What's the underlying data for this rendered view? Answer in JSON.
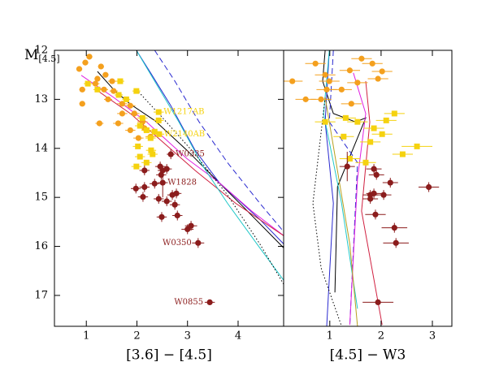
{
  "chart_data": [
    {
      "type": "scatter",
      "xlabel": "[3.6] − [4.5]",
      "ylabel": "M",
      "ylabel_sub": "[4.5]",
      "xlim": [
        0.37,
        4.9
      ],
      "xticks": [
        1,
        2,
        3,
        4
      ],
      "ylim": [
        17.63,
        12
      ],
      "yticks": [
        12,
        13,
        14,
        15,
        16,
        17
      ],
      "series": [
        {
          "color": "#f4a01e",
          "marker": "circle",
          "x": [
            1.06,
            0.86,
            0.98,
            1.29,
            1.38,
            1.22,
            0.92,
            0.92,
            1.18,
            1.51,
            1.35,
            1.54,
            1.43,
            1.71,
            1.63,
            1.87,
            1.71,
            1.95,
            2.11,
            1.87,
            2.03,
            2.15,
            2.27,
            1.26
          ],
          "values": [
            12.13,
            12.38,
            12.25,
            12.33,
            12.5,
            12.58,
            12.8,
            13.09,
            12.68,
            12.63,
            12.8,
            12.83,
            13.0,
            13.09,
            13.49,
            13.13,
            13.29,
            13.29,
            13.46,
            13.63,
            13.79,
            13.59,
            13.76,
            13.49
          ],
          "xerr": [
            0.06,
            0.06,
            0.06,
            0.06,
            0.06,
            0.06,
            0.06,
            0.06,
            0.08,
            0.08,
            0.08,
            0.08,
            0.08,
            0.1,
            0.1,
            0.1,
            0.1,
            0.1,
            0.1,
            0.1,
            0.1,
            0.1,
            0.1,
            0.08
          ],
          "yerr": [
            0.05,
            0.05,
            0.05,
            0.05,
            0.05,
            0.05,
            0.05,
            0.05,
            0.05,
            0.05,
            0.05,
            0.05,
            0.05,
            0.05,
            0.05,
            0.05,
            0.05,
            0.05,
            0.05,
            0.05,
            0.05,
            0.05,
            0.05,
            0.05
          ]
        },
        {
          "color": "#f5d20f",
          "marker": "square",
          "x": [
            1.03,
            1.22,
            1.64,
            1.67,
            1.79,
            1.99,
            2.06,
            2.19,
            2.11,
            2.27,
            2.35,
            2.43,
            2.06,
            2.19,
            1.99,
            2.31,
            2.43,
            2.44,
            2.28,
            2.02
          ],
          "values": [
            12.68,
            12.8,
            12.91,
            12.63,
            13.0,
            12.83,
            13.54,
            13.63,
            13.38,
            13.79,
            13.66,
            13.43,
            14.17,
            14.29,
            14.37,
            14.12,
            13.26,
            13.71,
            14.04,
            13.96
          ],
          "xerr": [
            0.08,
            0.08,
            0.08,
            0.08,
            0.08,
            0.08,
            0.1,
            0.1,
            0.1,
            0.1,
            0.1,
            0.1,
            0.1,
            0.1,
            0.1,
            0.1,
            0.1,
            0.1,
            0.1,
            0.1
          ],
          "yerr": [
            0.05,
            0.05,
            0.05,
            0.05,
            0.05,
            0.05,
            0.05,
            0.05,
            0.05,
            0.05,
            0.05,
            0.05,
            0.05,
            0.05,
            0.05,
            0.05,
            0.05,
            0.05,
            0.05,
            0.05
          ],
          "point_labels": [
            null,
            null,
            null,
            null,
            null,
            null,
            null,
            null,
            null,
            null,
            null,
            null,
            null,
            null,
            null,
            null,
            "W1217AB",
            "W2140AB",
            null,
            null
          ]
        },
        {
          "color": "#8b1c1c",
          "marker": "circle",
          "x": [
            2.67,
            2.51,
            2.46,
            2.48,
            2.59,
            2.51,
            2.15,
            1.98,
            2.15,
            2.12,
            2.43,
            2.59,
            2.7,
            2.75,
            2.8,
            2.49,
            3.0,
            3.07,
            3.21,
            3.44,
            2.35,
            2.78
          ],
          "values": [
            14.12,
            14.45,
            14.37,
            14.54,
            14.42,
            14.7,
            14.45,
            14.82,
            14.79,
            14.99,
            15.03,
            15.08,
            14.95,
            15.15,
            15.37,
            15.4,
            15.65,
            15.58,
            15.93,
            17.14,
            14.72,
            14.92
          ],
          "xerr": [
            0.08,
            0.1,
            0.1,
            0.1,
            0.1,
            0.1,
            0.1,
            0.1,
            0.1,
            0.1,
            0.1,
            0.1,
            0.1,
            0.1,
            0.1,
            0.1,
            0.12,
            0.12,
            0.12,
            0.1,
            0.1,
            0.1
          ],
          "yerr": [
            0.1,
            0.1,
            0.1,
            0.1,
            0.1,
            0.3,
            0.1,
            0.1,
            0.1,
            0.1,
            0.1,
            0.1,
            0.1,
            0.1,
            0.1,
            0.1,
            0.1,
            0.1,
            0.1,
            0.05,
            0.1,
            0.1
          ],
          "point_labels": [
            "W0335",
            null,
            null,
            null,
            null,
            "W1828",
            null,
            null,
            null,
            null,
            null,
            null,
            null,
            null,
            null,
            null,
            null,
            null,
            "W0350",
            "W0855",
            null,
            null
          ]
        }
      ],
      "lines": [
        {
          "color": "#000000",
          "dash": "solid",
          "x": [
            1.22,
            1.54,
            1.87,
            2.35,
            2.99,
            3.47,
            4.11,
            4.9
          ],
          "values": [
            12.43,
            12.8,
            13.1,
            13.43,
            14.04,
            14.54,
            15.2,
            16.03
          ]
        },
        {
          "color": "#2a2ad0",
          "dash": "solid",
          "x": [
            1.99,
            2.27,
            2.67,
            3.15,
            3.63,
            4.43,
            4.9
          ],
          "values": [
            12.0,
            12.46,
            13.13,
            14.04,
            14.7,
            15.45,
            15.95
          ]
        },
        {
          "color": "#2a2ad0",
          "dash": "dashed",
          "x": [
            2.35,
            2.75,
            3.23,
            3.79,
            4.43,
            4.9
          ],
          "values": [
            12.0,
            12.63,
            13.46,
            14.29,
            15.12,
            15.7
          ]
        },
        {
          "color": "#e020e0",
          "dash": "solid",
          "x": [
            0.9,
            1.54,
            2.19,
            2.99,
            3.63,
            4.27,
            4.9
          ],
          "values": [
            12.51,
            12.96,
            13.46,
            14.21,
            14.7,
            15.28,
            15.78
          ]
        },
        {
          "color": "#d02040",
          "dash": "solid",
          "x": [
            1.19,
            1.87,
            2.51,
            3.15,
            3.95,
            4.9
          ],
          "values": [
            12.8,
            13.29,
            13.87,
            14.45,
            15.12,
            15.78
          ]
        },
        {
          "color": "#20c8c8",
          "dash": "solid",
          "x": [
            1.99,
            2.35,
            2.83,
            3.31,
            3.79,
            4.43,
            4.9
          ],
          "values": [
            12.0,
            12.63,
            13.46,
            14.37,
            15.12,
            16.03,
            16.69
          ]
        },
        {
          "color": "#000000",
          "dash": "dotted",
          "x": [
            1.99,
            2.51,
            3.15,
            3.79,
            4.43,
            4.9
          ],
          "values": [
            12.8,
            13.38,
            14.12,
            14.95,
            15.95,
            16.77
          ]
        }
      ]
    },
    {
      "type": "scatter",
      "xlabel": "[4.5] − W3",
      "xlim": [
        0.1,
        3.38
      ],
      "xticks": [
        1,
        2,
        3
      ],
      "ylim": [
        17.63,
        12
      ],
      "series": [
        {
          "color": "#f4a01e",
          "marker": "circle",
          "x": [
            0.27,
            0.53,
            0.72,
            0.91,
            0.99,
            1.39,
            1.62,
            1.83,
            1.94,
            0.94,
            0.83,
            1.23,
            1.42,
            2.02,
            1.54
          ],
          "values": [
            12.63,
            13.0,
            12.27,
            12.5,
            12.63,
            12.41,
            12.17,
            12.27,
            12.58,
            12.8,
            13.0,
            12.8,
            13.09,
            12.43,
            12.66
          ],
          "xerr": [
            0.2,
            0.2,
            0.2,
            0.2,
            0.2,
            0.2,
            0.2,
            0.2,
            0.2,
            0.2,
            0.2,
            0.2,
            0.2,
            0.2,
            0.2
          ],
          "yerr": [
            0.05,
            0.05,
            0.05,
            0.05,
            0.05,
            0.05,
            0.05,
            0.05,
            0.05,
            0.05,
            0.05,
            0.05,
            0.05,
            0.05,
            0.05
          ]
        },
        {
          "color": "#f5d20f",
          "marker": "square",
          "x": [
            0.91,
            1.31,
            1.54,
            1.86,
            2.1,
            2.26,
            2.02,
            2.42,
            2.7,
            1.27,
            1.79,
            1.39,
            1.7
          ],
          "values": [
            13.46,
            13.38,
            13.46,
            13.59,
            13.43,
            13.29,
            13.71,
            14.12,
            13.96,
            13.76,
            13.87,
            14.21,
            14.29
          ],
          "xerr": [
            0.2,
            0.2,
            0.2,
            0.2,
            0.2,
            0.2,
            0.2,
            0.2,
            0.3,
            0.2,
            0.2,
            0.2,
            0.2
          ],
          "yerr": [
            0.05,
            0.05,
            0.05,
            0.05,
            0.05,
            0.05,
            0.05,
            0.05,
            0.05,
            0.05,
            0.05,
            0.05,
            0.05
          ]
        },
        {
          "color": "#8b1c1c",
          "marker": "circle",
          "x": [
            1.34,
            1.86,
            1.91,
            1.79,
            1.79,
            1.86,
            2.18,
            2.93,
            1.89,
            2.26,
            2.29,
            1.94,
            2.05
          ],
          "values": [
            14.37,
            14.42,
            14.54,
            14.95,
            15.03,
            14.92,
            14.7,
            14.79,
            15.35,
            15.62,
            15.93,
            17.14,
            14.95
          ],
          "xerr": [
            0.15,
            0.15,
            0.15,
            0.15,
            0.15,
            0.15,
            0.15,
            0.2,
            0.2,
            0.25,
            0.25,
            0.3,
            0.15
          ],
          "yerr": [
            0.3,
            0.1,
            0.1,
            0.1,
            0.1,
            0.1,
            0.1,
            0.1,
            0.1,
            0.1,
            0.1,
            0.05,
            0.1
          ]
        }
      ],
      "lines": [
        {
          "color": "#000000",
          "dash": "solid",
          "x": [
            0.91,
            0.86,
            1.07,
            1.5,
            1.7,
            1.15,
            1.1
          ],
          "values": [
            12.0,
            12.63,
            13.29,
            13.46,
            13.38,
            14.78,
            16.94
          ]
        },
        {
          "color": "#2a2ad0",
          "dash": "solid",
          "x": [
            0.99,
            0.91,
            1.07,
            0.94
          ],
          "values": [
            12.0,
            13.46,
            15.12,
            17.63
          ]
        },
        {
          "color": "#2a2ad0",
          "dash": "dashed",
          "x": [
            1.07,
            0.99,
            1.54,
            1.39
          ],
          "values": [
            12.0,
            13.46,
            14.29,
            17.63
          ]
        },
        {
          "color": "#20c8c8",
          "dash": "solid",
          "x": [
            0.99,
            0.88,
            1.23,
            1.54
          ],
          "values": [
            12.0,
            13.29,
            15.12,
            17.27
          ]
        },
        {
          "color": "#e020e0",
          "dash": "solid",
          "x": [
            1.46,
            1.7,
            1.54,
            1.39
          ],
          "values": [
            12.46,
            13.29,
            14.62,
            17.6
          ]
        },
        {
          "color": "#d02040",
          "dash": "solid",
          "x": [
            1.7,
            1.78,
            1.62,
            2.02
          ],
          "values": [
            12.63,
            13.46,
            15.28,
            17.6
          ]
        },
        {
          "color": "#000000",
          "dash": "dotted",
          "x": [
            0.91,
            0.67,
            0.83,
            1.23
          ],
          "values": [
            12.96,
            15.12,
            16.44,
            17.63
          ]
        },
        {
          "color": "#b8a020",
          "dash": "solid",
          "x": [
            0.91,
            1.39,
            1.54
          ],
          "values": [
            12.96,
            15.95,
            17.63
          ]
        }
      ]
    }
  ]
}
